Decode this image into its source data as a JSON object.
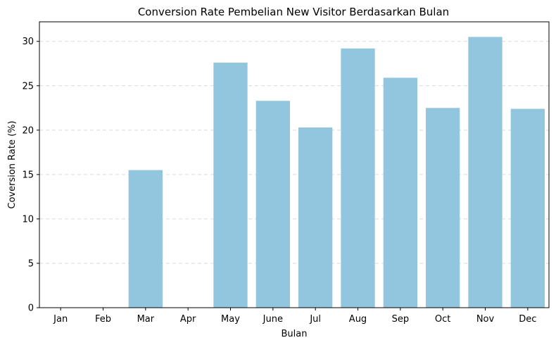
{
  "chart_data": {
    "type": "bar",
    "title": "Conversion Rate Pembelian New Visitor Berdasarkan Bulan",
    "xlabel": "Bulan",
    "ylabel": "Coversion Rate (%)",
    "categories": [
      "Jan",
      "Feb",
      "Mar",
      "Apr",
      "May",
      "June",
      "Jul",
      "Aug",
      "Sep",
      "Oct",
      "Nov",
      "Dec"
    ],
    "values": [
      0,
      0,
      15.5,
      0,
      27.6,
      23.3,
      20.3,
      29.2,
      25.9,
      22.5,
      30.5,
      22.4
    ],
    "ylim": [
      0,
      32.2
    ],
    "yticks": [
      0,
      5,
      10,
      15,
      20,
      25,
      30
    ],
    "grid": "y-dashed",
    "bar_color": "#92c5de"
  }
}
